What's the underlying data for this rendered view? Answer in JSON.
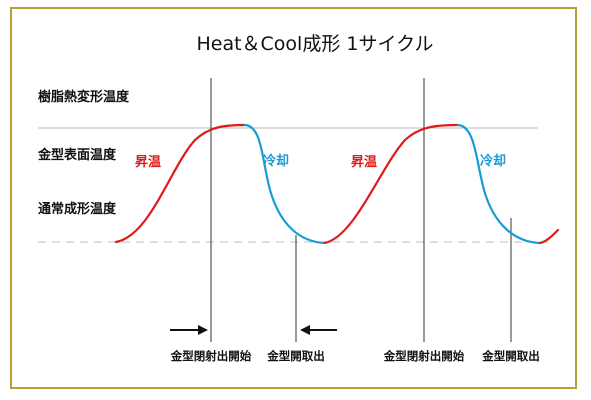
{
  "title": "Heat＆Cool成形 1サイクル",
  "levels": [
    {
      "label": "樹脂熱変形温度"
    },
    {
      "label": "金型表面温度"
    },
    {
      "label": "通常成形温度"
    }
  ],
  "phases": {
    "heating": "昇温",
    "cooling": "冷却"
  },
  "events": {
    "injection_start": "金型閉射出開始",
    "mold_open": "金型開取出"
  },
  "colors": {
    "frame": "#b5a13a",
    "heating": "#e01b1b",
    "cooling": "#1a9ad6",
    "grid": "#bbbbbb",
    "axis": "#333333"
  }
}
